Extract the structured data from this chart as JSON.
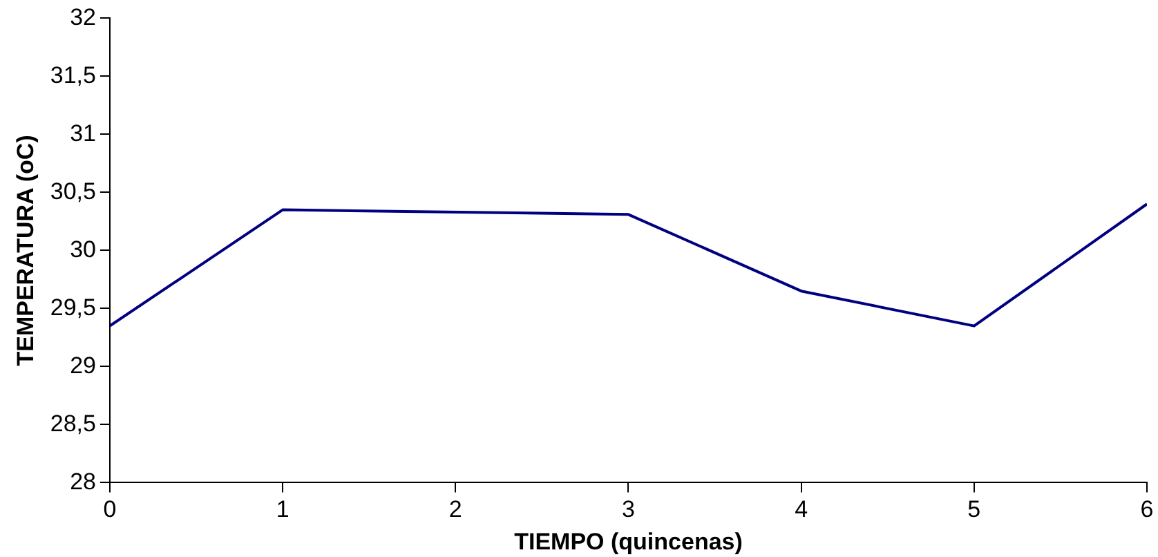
{
  "chart_data": {
    "type": "line",
    "xlabel": "TIEMPO (quincenas)",
    "ylabel": "TEMPERATURA (oC)",
    "series": [
      {
        "color": "#000080",
        "x": [
          0,
          1,
          3,
          4,
          5,
          6
        ],
        "values": [
          29.35,
          30.35,
          30.31,
          29.65,
          29.35,
          30.4
        ]
      }
    ],
    "xlim": [
      0,
      6
    ],
    "xticks": [
      0,
      1,
      2,
      3,
      4,
      5,
      6
    ],
    "ylim": [
      28,
      32
    ],
    "yticks": [
      28,
      {
        "value": 28.5,
        "label": "28,5"
      },
      29,
      {
        "value": 29.5,
        "label": "29,5"
      },
      30,
      {
        "value": 30.5,
        "label": "30,5"
      },
      31,
      {
        "value": 31.5,
        "label": "31,5"
      },
      32
    ],
    "grid": false,
    "legend": false,
    "marker": "none",
    "line_style": "solid"
  }
}
